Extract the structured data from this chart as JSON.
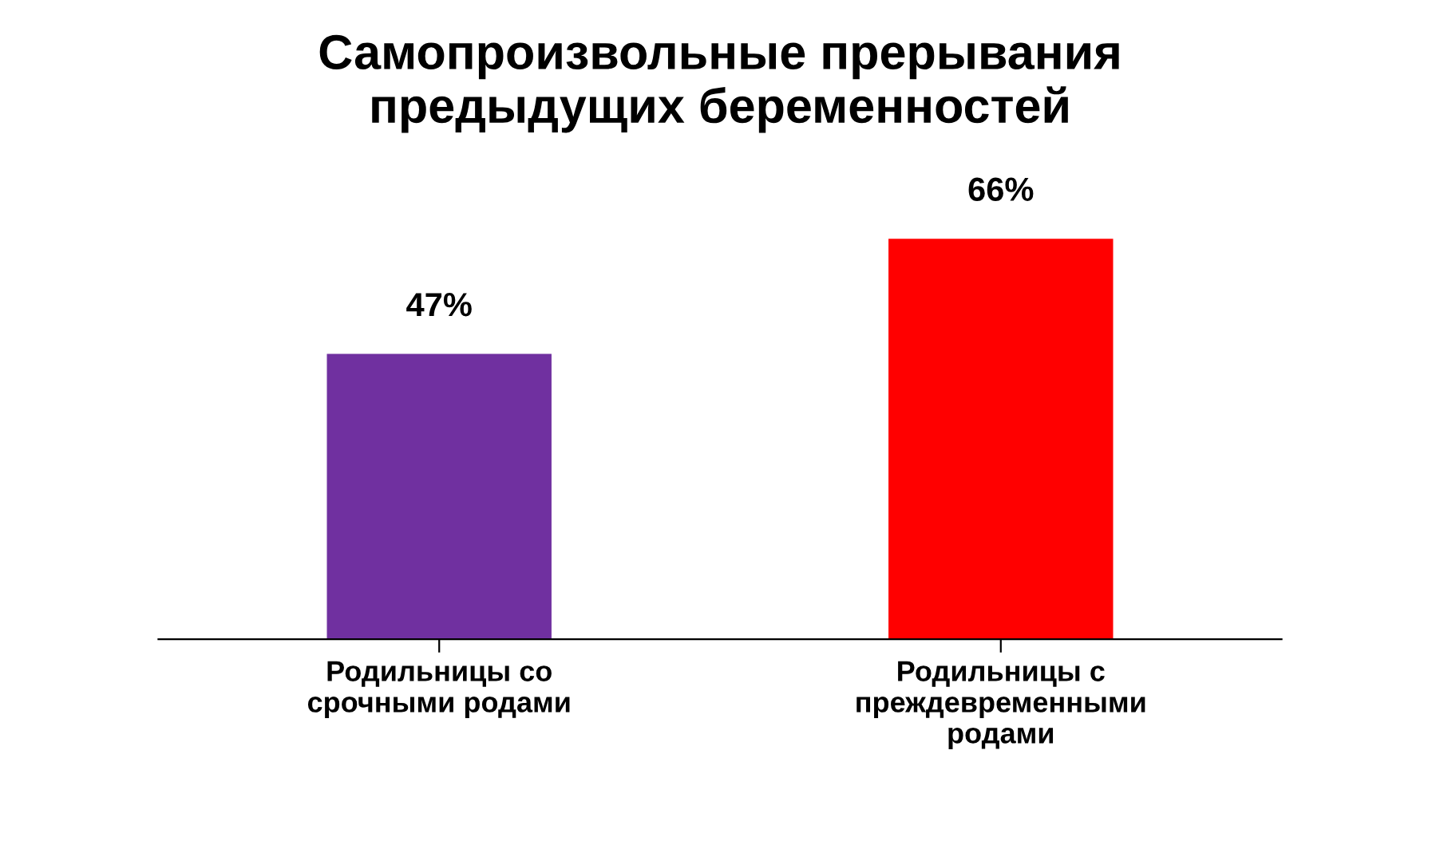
{
  "chart_data": {
    "type": "bar",
    "title": "Самопроизвольные прерывания\nпредыдущих беременностей",
    "categories": [
      "Родильницы со\nсрочными родами",
      "Родильницы с\nпреждевременными\nродами"
    ],
    "values": [
      47,
      66
    ],
    "colors": [
      "#7030a0",
      "#ff0000"
    ],
    "value_labels": [
      "47%",
      "66%"
    ],
    "grid": false,
    "legend": false,
    "tick_labels": "x"
  }
}
